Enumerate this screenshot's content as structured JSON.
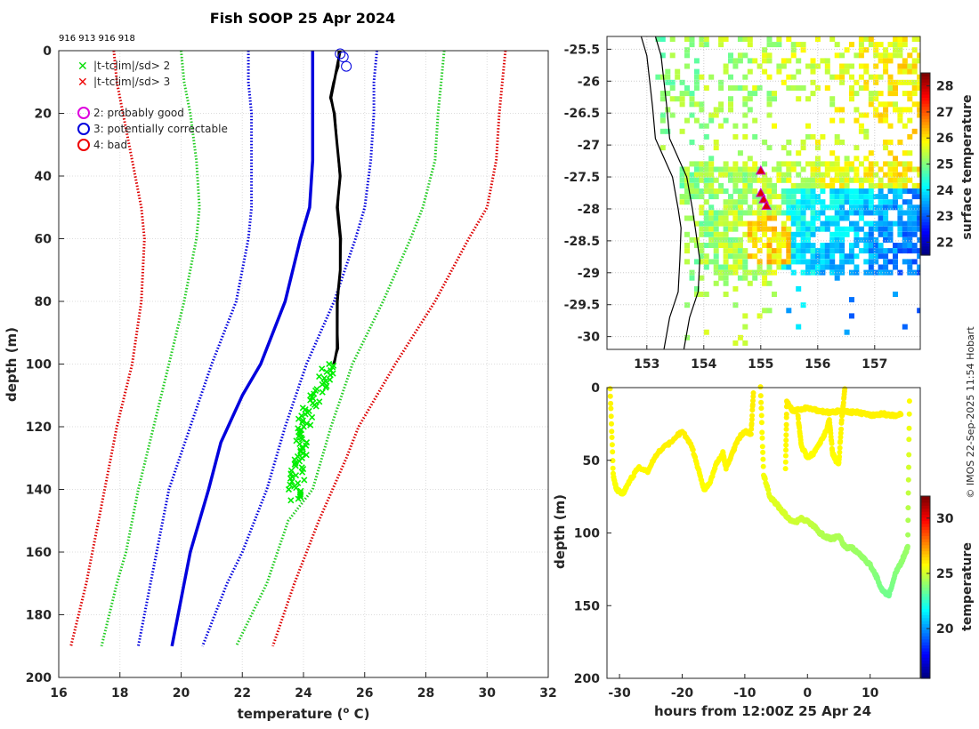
{
  "header": {
    "title": "Fish SOOP 25 Apr 2024",
    "instrument_ids": "916 913 916 918",
    "credit": "© IMOS 22-Sep-2025 11:54 Hobart"
  },
  "legend": {
    "items": [
      {
        "symbol": "x",
        "color": "#00dd00",
        "label": "|t-tclim|/sd> 2"
      },
      {
        "symbol": "x",
        "color": "#ee0000",
        "label": "|t-tclim|/sd> 3"
      },
      {
        "symbol": "o",
        "color": "#dd00dd",
        "label": "2: probably good"
      },
      {
        "symbol": "o",
        "color": "#0000dd",
        "label": "3: potentially correctable"
      },
      {
        "symbol": "o",
        "color": "#ee0000",
        "label": "4: bad"
      }
    ]
  },
  "chart_data": [
    {
      "id": "profile",
      "type": "line",
      "title": "Fish SOOP 25 Apr 2024",
      "xlabel": "temperature (",
      "xlabel_sup": "o",
      "xlabel_end": " C)",
      "ylabel": "depth (m)",
      "xlim": [
        16,
        32
      ],
      "ylim": [
        0,
        200
      ],
      "y_reversed": true,
      "grid": true,
      "xticks": [
        "16",
        "18",
        "20",
        "22",
        "24",
        "26",
        "28",
        "30",
        "32"
      ],
      "yticks": [
        "0",
        "20",
        "40",
        "60",
        "80",
        "100",
        "120",
        "140",
        "160",
        "180",
        "200"
      ],
      "series": [
        {
          "name": "clim -3sd",
          "color": "#dd0000",
          "style": "dotted",
          "depth": [
            0,
            10,
            20,
            35,
            50,
            60,
            80,
            100,
            120,
            140,
            160,
            170,
            190
          ],
          "temp": [
            17.8,
            17.9,
            18.1,
            18.4,
            18.7,
            18.8,
            18.7,
            18.4,
            17.9,
            17.5,
            17.1,
            16.9,
            16.4
          ]
        },
        {
          "name": "clim -2sd",
          "color": "#22cc22",
          "style": "dotted",
          "depth": [
            0,
            10,
            20,
            35,
            50,
            60,
            80,
            100,
            120,
            140,
            160,
            170,
            190
          ],
          "temp": [
            20.0,
            20.1,
            20.3,
            20.5,
            20.6,
            20.5,
            20.1,
            19.6,
            19.1,
            18.6,
            18.2,
            17.9,
            17.4
          ]
        },
        {
          "name": "clim -1sd",
          "color": "#0000dd",
          "style": "dotted",
          "depth": [
            0,
            10,
            20,
            35,
            50,
            60,
            80,
            100,
            120,
            140,
            160,
            170,
            190
          ],
          "temp": [
            22.2,
            22.2,
            22.3,
            22.3,
            22.3,
            22.2,
            21.8,
            21.0,
            20.3,
            19.6,
            19.2,
            19.0,
            18.6
          ]
        },
        {
          "name": "clim mean",
          "color": "#0000dd",
          "style": "solid",
          "depth": [
            0,
            10,
            20,
            35,
            50,
            60,
            80,
            100,
            110,
            125,
            140,
            150,
            160,
            170,
            180,
            190
          ],
          "temp": [
            24.3,
            24.3,
            24.3,
            24.3,
            24.2,
            23.9,
            23.4,
            22.6,
            22.0,
            21.3,
            20.9,
            20.6,
            20.3,
            20.1,
            19.9,
            19.7
          ]
        },
        {
          "name": "clim +1sd",
          "color": "#0000dd",
          "style": "dotted",
          "depth": [
            0,
            10,
            20,
            35,
            50,
            60,
            80,
            100,
            120,
            140,
            160,
            170,
            190
          ],
          "temp": [
            26.4,
            26.3,
            26.3,
            26.2,
            26.0,
            25.7,
            25.0,
            24.1,
            23.4,
            22.8,
            22.0,
            21.5,
            20.7
          ]
        },
        {
          "name": "clim +2sd",
          "color": "#22cc22",
          "style": "dotted",
          "depth": [
            0,
            10,
            20,
            35,
            50,
            60,
            80,
            100,
            120,
            140,
            150,
            170,
            190
          ],
          "temp": [
            28.6,
            28.5,
            28.4,
            28.3,
            27.9,
            27.5,
            26.6,
            25.6,
            24.9,
            24.3,
            23.5,
            22.8,
            21.8
          ]
        },
        {
          "name": "clim +3sd",
          "color": "#dd0000",
          "style": "dotted",
          "depth": [
            0,
            10,
            20,
            35,
            50,
            60,
            80,
            100,
            120,
            130,
            150,
            170,
            190
          ],
          "temp": [
            30.6,
            30.5,
            30.4,
            30.3,
            30.0,
            29.4,
            28.3,
            27.0,
            25.8,
            25.4,
            24.5,
            23.7,
            23.0
          ]
        },
        {
          "name": "observed",
          "color": "#000000",
          "style": "solid",
          "depth": [
            0,
            5,
            10,
            15,
            20,
            30,
            40,
            50,
            60,
            70,
            80,
            90,
            95,
            100
          ],
          "temp": [
            25.2,
            25.1,
            25.0,
            24.9,
            25.0,
            25.1,
            25.2,
            25.1,
            25.2,
            25.2,
            25.1,
            25.1,
            25.1,
            25.0
          ]
        },
        {
          "name": "flagged |t-tclim|/sd> 2",
          "color": "#00ee00",
          "style": "marker-x",
          "depth": [
            100,
            104,
            108,
            112,
            116,
            120,
            124,
            128,
            132,
            136,
            140,
            144
          ],
          "temp": [
            24.9,
            24.7,
            24.5,
            24.3,
            24.1,
            24.0,
            23.9,
            23.9,
            23.8,
            23.8,
            23.7,
            23.7
          ]
        }
      ],
      "flag_markers": [
        {
          "label": "3: potentially correctable",
          "color": "#0000dd",
          "depth": [
            1,
            2,
            5
          ],
          "temp": [
            25.2,
            25.3,
            25.4
          ]
        }
      ]
    },
    {
      "id": "sst_map",
      "type": "heatmap",
      "xlim": [
        152.3,
        157.8
      ],
      "ylim": [
        -30.2,
        -25.3
      ],
      "xticks": [
        "153",
        "154",
        "155",
        "156",
        "157"
      ],
      "yticks": [
        "-25.5",
        "-26",
        "-26.5",
        "-27",
        "-27.5",
        "-28",
        "-28.5",
        "-29",
        "-29.5",
        "-30"
      ],
      "colorbar": {
        "label": "surface temperature",
        "range": [
          21.5,
          28.5
        ],
        "ticks": [
          "22",
          "23",
          "24",
          "25",
          "26",
          "27",
          "28"
        ]
      },
      "stations": {
        "lon": [
          155.0,
          155.0,
          155.05,
          155.1
        ],
        "lat": [
          -27.4,
          -27.75,
          -27.85,
          -27.95
        ],
        "color": "#dd0000"
      }
    },
    {
      "id": "depth_time",
      "type": "scatter",
      "xlabel": "hours from 12:00Z 25 Apr 24",
      "ylabel": "depth (m)",
      "xlim": [
        -32,
        18
      ],
      "ylim": [
        0,
        200
      ],
      "y_reversed": true,
      "xticks": [
        "-30",
        "-20",
        "-10",
        "0",
        "10"
      ],
      "yticks": [
        "0",
        "50",
        "100",
        "150",
        "200"
      ],
      "colorbar": {
        "label": "temperature",
        "range": [
          15.5,
          32
        ],
        "ticks": [
          "20",
          "25",
          "30"
        ]
      },
      "tracks": [
        {
          "hours": [
            -31.5,
            -31,
            -30.5,
            -29.5,
            -28.5,
            -27,
            -25.5,
            -24,
            -22,
            -20,
            -18.5,
            -17.5,
            -16.5,
            -15.5,
            -14.5,
            -13.5,
            -13,
            -12,
            -11,
            -10,
            -9,
            -8.6
          ],
          "depth": [
            0,
            60,
            70,
            73,
            65,
            55,
            58,
            45,
            38,
            30,
            40,
            55,
            70,
            65,
            52,
            45,
            55,
            45,
            35,
            30,
            32,
            0
          ],
          "temp": [
            26,
            25.8,
            25.7,
            25.7,
            25.8,
            25.9,
            25.9,
            26.0,
            26.0,
            26.1,
            26.0,
            25.9,
            25.8,
            25.8,
            25.9,
            25.9,
            25.9,
            26.0,
            26.0,
            26.0,
            26.0,
            26.1
          ]
        },
        {
          "hours": [
            -7.5,
            -7,
            -6,
            -5,
            -4,
            -3,
            -2,
            -1,
            0,
            1,
            2,
            3,
            4,
            5,
            6,
            7,
            8,
            9,
            10,
            11,
            12,
            13,
            14,
            15,
            15.5,
            16,
            16.3
          ],
          "depth": [
            0,
            60,
            75,
            80,
            85,
            90,
            93,
            90,
            92,
            95,
            100,
            103,
            104,
            102,
            110,
            110,
            113,
            118,
            122,
            130,
            140,
            143,
            128,
            120,
            115,
            110,
            0
          ],
          "temp": [
            26,
            25.7,
            25.4,
            25.3,
            25.2,
            25.1,
            25.0,
            25.0,
            24.9,
            24.8,
            24.6,
            24.5,
            24.5,
            24.5,
            24.3,
            24.3,
            24.2,
            24.1,
            24.0,
            23.8,
            23.6,
            23.5,
            23.8,
            24.0,
            24.1,
            24.2,
            26
          ]
        },
        {
          "hours": [
            -3.5,
            -3.3,
            -2.5,
            -2,
            -1,
            0,
            1,
            2,
            3,
            4,
            5,
            6,
            7,
            8,
            9,
            10,
            11,
            12,
            13,
            14,
            15
          ],
          "depth": [
            55,
            10,
            15,
            16,
            15,
            14,
            15,
            16,
            17,
            17,
            16,
            16,
            17,
            17,
            18,
            19,
            19,
            18,
            19,
            19,
            18
          ],
          "temp": [
            25.8,
            26.1,
            26.0,
            26.0,
            26.0,
            26.0,
            26.0,
            26.0,
            26.0,
            26.0,
            26.0,
            26.0,
            26.0,
            26.0,
            26.0,
            26.0,
            26.0,
            26.0,
            26.0,
            26.0,
            26.0
          ]
        },
        {
          "hours": [
            -1.5,
            -1,
            0,
            1,
            2,
            3,
            3.5,
            4,
            4.5,
            5,
            5.5,
            6
          ],
          "depth": [
            20,
            40,
            48,
            45,
            38,
            30,
            22,
            45,
            50,
            52,
            20,
            0
          ],
          "temp": [
            26.0,
            25.9,
            25.8,
            25.8,
            25.9,
            25.9,
            26.0,
            25.9,
            25.8,
            25.8,
            26.0,
            26.1
          ]
        }
      ]
    }
  ]
}
